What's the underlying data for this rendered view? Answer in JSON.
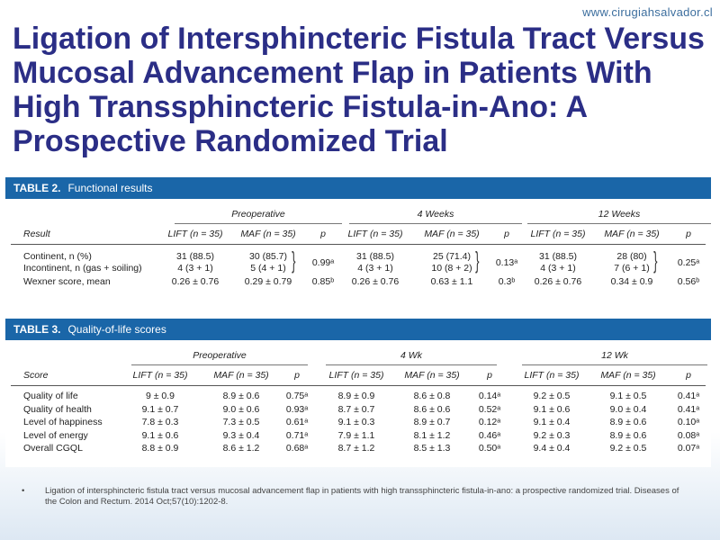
{
  "url": "www.cirugiahsalvador.cl",
  "title": "Ligation of Intersphincteric Fistula Tract Versus Mucosal Advancement Flap in Patients With High Transsphincteric Fistula-in-Ano: A Prospective Randomized Trial",
  "table2": {
    "label": "TABLE 2.",
    "name": "Functional results",
    "groups": [
      "Preoperative",
      "4 Weeks",
      "12 Weeks"
    ],
    "col_result": "Result",
    "col_lift": "LIFT (n = 35)",
    "col_maf": "MAF (n = 35)",
    "col_p": "p",
    "rows": [
      {
        "label": "Continent, n (%)",
        "pre_lift": "31 (88.5)",
        "pre_maf": "30 (85.7)",
        "w4_lift": "31 (88.5)",
        "w4_maf": "25 (71.4)",
        "w12_lift": "31 (88.5)",
        "w12_maf": "28 (80)"
      },
      {
        "label": "Incontinent, n (gas + soiling)",
        "pre_lift": "4 (3 + 1)",
        "pre_maf": "5 (4 + 1)",
        "w4_lift": "4 (3 + 1)",
        "w4_maf": "10 (8 + 2)",
        "w12_lift": "4 (3 + 1)",
        "w12_maf": "7 (6 + 1)"
      },
      {
        "label": "Wexner score, mean",
        "pre_lift": "0.26 ± 0.76",
        "pre_maf": "0.29 ± 0.79",
        "pre_p": "0.85ᵇ",
        "w4_lift": "0.26 ± 0.76",
        "w4_maf": "0.63 ± 1.1",
        "w4_p": "0.3ᵇ",
        "w12_lift": "0.26 ± 0.76",
        "w12_maf": "0.34 ± 0.9",
        "w12_p": "0.56ᵇ"
      }
    ],
    "cont_p": {
      "pre": "0.99ᵃ",
      "w4": "0.13ᵃ",
      "w12": "0.25ᵃ"
    }
  },
  "table3": {
    "label": "TABLE 3.",
    "name": "Quality-of-life scores",
    "groups": [
      "Preoperative",
      "4 Wk",
      "12 Wk"
    ],
    "col_score": "Score",
    "col_lift": "LIFT (n = 35)",
    "col_maf": "MAF (n = 35)",
    "col_p": "p",
    "rows": [
      {
        "label": "Quality of life",
        "pre_lift": "9 ± 0.9",
        "pre_maf": "8.9 ± 0.6",
        "pre_p": "0.75ᵃ",
        "w4_lift": "8.9 ± 0.9",
        "w4_maf": "8.6 ± 0.8",
        "w4_p": "0.14ᵃ",
        "w12_lift": "9.2 ± 0.5",
        "w12_maf": "9.1 ± 0.5",
        "w12_p": "0.41ᵃ"
      },
      {
        "label": "Quality of health",
        "pre_lift": "9.1 ± 0.7",
        "pre_maf": "9.0 ± 0.6",
        "pre_p": "0.93ᵃ",
        "w4_lift": "8.7 ± 0.7",
        "w4_maf": "8.6 ± 0.6",
        "w4_p": "0.52ᵃ",
        "w12_lift": "9.1 ± 0.6",
        "w12_maf": "9.0 ± 0.4",
        "w12_p": "0.41ᵃ"
      },
      {
        "label": "Level of happiness",
        "pre_lift": "7.8 ± 0.3",
        "pre_maf": "7.3 ± 0.5",
        "pre_p": "0.61ᵃ",
        "w4_lift": "9.1 ± 0.3",
        "w4_maf": "8.9 ± 0.7",
        "w4_p": "0.12ᵃ",
        "w12_lift": "9.1 ± 0.4",
        "w12_maf": "8.9 ± 0.6",
        "w12_p": "0.10ᵃ"
      },
      {
        "label": "Level of energy",
        "pre_lift": "9.1 ± 0.6",
        "pre_maf": "9.3 ± 0.4",
        "pre_p": "0.71ᵃ",
        "w4_lift": "7.9 ± 1.1",
        "w4_maf": "8.1 ± 1.2",
        "w4_p": "0.46ᵃ",
        "w12_lift": "9.2 ± 0.3",
        "w12_maf": "8.9 ± 0.6",
        "w12_p": "0.08ᵃ"
      },
      {
        "label": "Overall CGQL",
        "pre_lift": "8.8 ± 0.9",
        "pre_maf": "8.6 ± 1.2",
        "pre_p": "0.68ᵃ",
        "w4_lift": "8.7 ± 1.2",
        "w4_maf": "8.5 ± 1.3",
        "w4_p": "0.50ᵃ",
        "w12_lift": "9.4 ± 0.4",
        "w12_maf": "9.2 ± 0.5",
        "w12_p": "0.07ᵃ"
      }
    ]
  },
  "footer": {
    "bullet": "•",
    "citation": "Ligation of intersphincteric fistula tract versus mucosal advancement flap in patients with high transsphincteric fistula-in-ano: a prospective randomized trial. Diseases of the Colon and Rectum. 2014 Oct;57(10):1202-8."
  }
}
